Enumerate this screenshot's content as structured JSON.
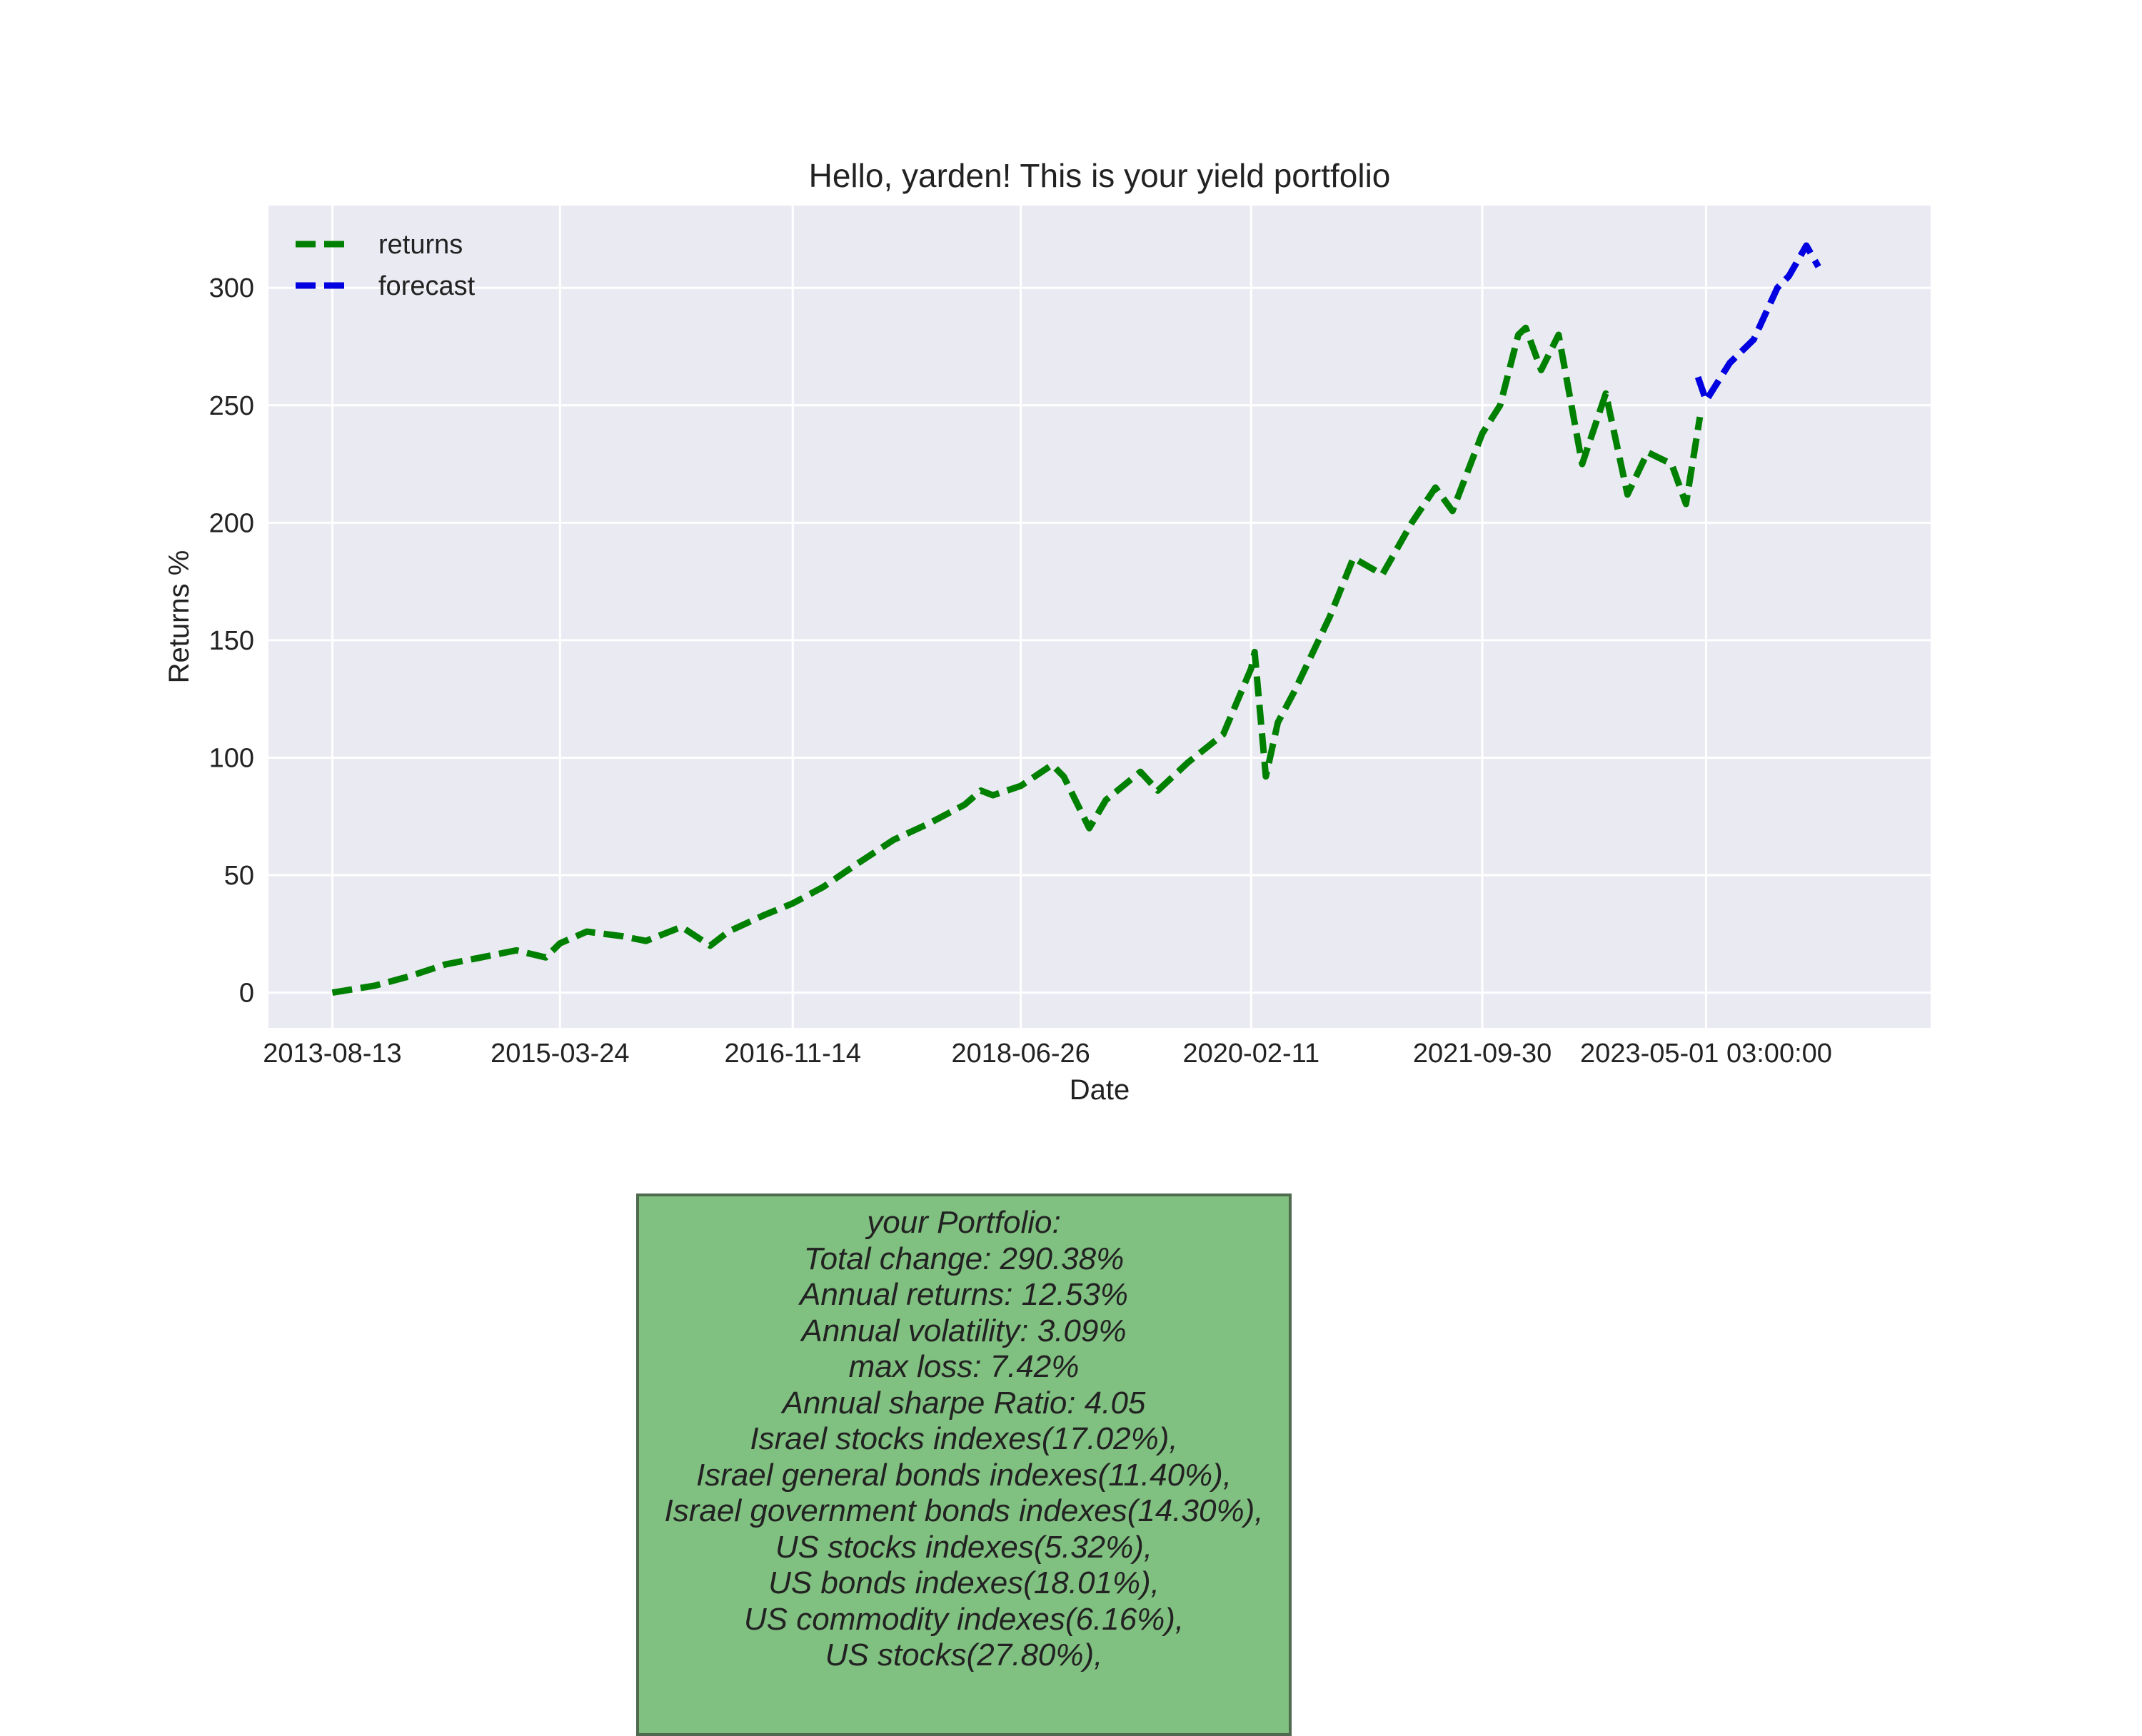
{
  "chart_data": {
    "type": "line",
    "title": "Hello, yarden! This is your yield portfolio",
    "xlabel": "Date",
    "ylabel": "Returns %",
    "x_tick_labels": [
      "2013-08-13",
      "2015-03-24",
      "2016-11-14",
      "2018-06-26",
      "2020-02-11",
      "2021-09-30",
      "2023-05-01 03:00:00"
    ],
    "y_ticks": [
      0,
      50,
      100,
      150,
      200,
      250,
      300
    ],
    "xlim": [
      "2013-03-01",
      "2024-12-01"
    ],
    "ylim": [
      -15,
      335
    ],
    "grid": true,
    "legend_position": "upper left",
    "series": [
      {
        "name": "returns",
        "color": "#008000",
        "style": "dashed",
        "points": [
          [
            "2013-08-13",
            0
          ],
          [
            "2013-12-01",
            3
          ],
          [
            "2014-03-01",
            7
          ],
          [
            "2014-06-01",
            12
          ],
          [
            "2014-09-01",
            15
          ],
          [
            "2014-12-01",
            18
          ],
          [
            "2015-02-15",
            15
          ],
          [
            "2015-03-24",
            21
          ],
          [
            "2015-06-01",
            26
          ],
          [
            "2015-09-01",
            24
          ],
          [
            "2015-11-01",
            22
          ],
          [
            "2016-02-01",
            28
          ],
          [
            "2016-04-15",
            20
          ],
          [
            "2016-06-01",
            26
          ],
          [
            "2016-09-01",
            33
          ],
          [
            "2016-11-14",
            38
          ],
          [
            "2017-02-01",
            45
          ],
          [
            "2017-05-01",
            55
          ],
          [
            "2017-08-01",
            65
          ],
          [
            "2017-11-01",
            72
          ],
          [
            "2018-02-01",
            80
          ],
          [
            "2018-03-15",
            86
          ],
          [
            "2018-04-15",
            84
          ],
          [
            "2018-06-26",
            88
          ],
          [
            "2018-09-15",
            97
          ],
          [
            "2018-10-15",
            92
          ],
          [
            "2018-12-20",
            70
          ],
          [
            "2019-02-01",
            82
          ],
          [
            "2019-05-01",
            94
          ],
          [
            "2019-06-15",
            86
          ],
          [
            "2019-09-01",
            98
          ],
          [
            "2019-12-01",
            110
          ],
          [
            "2020-02-11",
            138
          ],
          [
            "2020-02-20",
            145
          ],
          [
            "2020-03-20",
            92
          ],
          [
            "2020-04-20",
            115
          ],
          [
            "2020-06-01",
            128
          ],
          [
            "2020-09-01",
            160
          ],
          [
            "2020-11-01",
            185
          ],
          [
            "2021-01-15",
            178
          ],
          [
            "2021-04-01",
            200
          ],
          [
            "2021-06-01",
            215
          ],
          [
            "2021-07-15",
            205
          ],
          [
            "2021-09-30",
            238
          ],
          [
            "2021-11-15",
            250
          ],
          [
            "2022-01-01",
            280
          ],
          [
            "2022-01-20",
            283
          ],
          [
            "2022-03-01",
            265
          ],
          [
            "2022-04-15",
            280
          ],
          [
            "2022-06-15",
            225
          ],
          [
            "2022-08-15",
            255
          ],
          [
            "2022-10-10",
            212
          ],
          [
            "2022-12-01",
            230
          ],
          [
            "2023-02-01",
            225
          ],
          [
            "2023-03-10",
            208
          ],
          [
            "2023-04-15",
            245
          ]
        ]
      },
      {
        "name": "forecast",
        "color": "#0000e0",
        "style": "dashed",
        "points": [
          [
            "2023-04-10",
            262
          ],
          [
            "2023-05-01",
            252
          ],
          [
            "2023-07-01",
            268
          ],
          [
            "2023-09-01",
            278
          ],
          [
            "2023-11-01",
            300
          ],
          [
            "2023-12-01",
            305
          ],
          [
            "2024-01-15",
            318
          ],
          [
            "2024-02-15",
            309
          ]
        ]
      }
    ]
  },
  "summary": {
    "lines": [
      "your Portfolio:",
      "Total change: 290.38%",
      "Annual returns: 12.53%",
      "Annual volatility: 3.09%",
      "max loss: 7.42%",
      "Annual sharpe Ratio: 4.05",
      "Israel stocks indexes(17.02%),",
      "Israel general bonds indexes(11.40%),",
      "Israel government bonds indexes(14.30%),",
      "US stocks indexes(5.32%),",
      "US bonds indexes(18.01%),",
      "US commodity indexes(6.16%),",
      "US stocks(27.80%),"
    ]
  }
}
